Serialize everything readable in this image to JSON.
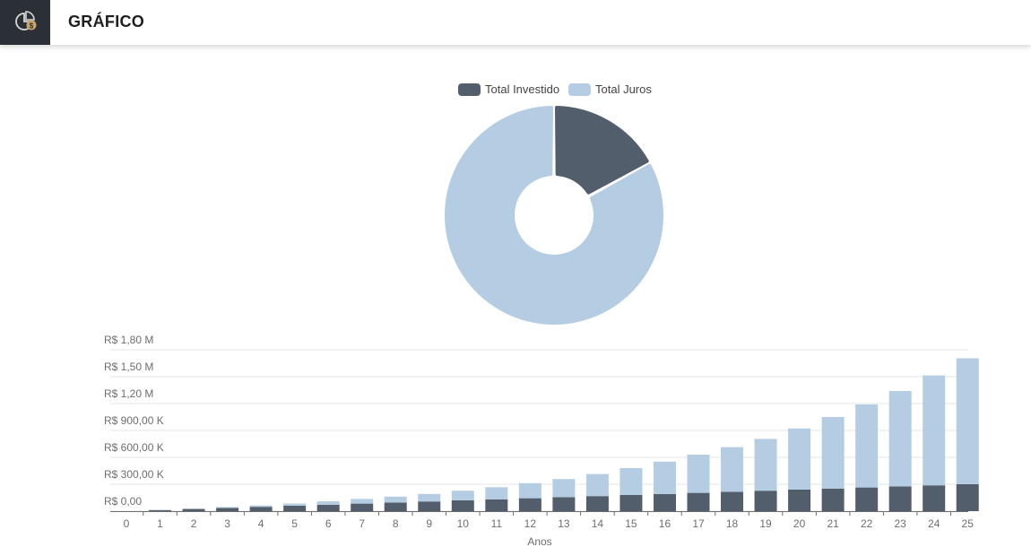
{
  "header": {
    "title": "GRÁFICO",
    "icon": "pie-chart-money-icon"
  },
  "colors": {
    "investido": "#525e6b",
    "juros": "#b5cde2",
    "header_icon_bg": "#2b3036",
    "icon_accent": "#c9a36b"
  },
  "chart_data": [
    {
      "type": "pie",
      "variant": "donut",
      "legend": [
        "Total Investido",
        "Total Juros"
      ],
      "legend_position": "top-center",
      "slices": [
        {
          "name": "Total Investido",
          "value": 17
        },
        {
          "name": "Total Juros",
          "value": 83
        }
      ]
    },
    {
      "type": "bar",
      "stacked": true,
      "xlabel": "Anos",
      "categories": [
        "0",
        "1",
        "2",
        "3",
        "4",
        "5",
        "6",
        "7",
        "8",
        "9",
        "10",
        "11",
        "12",
        "13",
        "14",
        "15",
        "16",
        "17",
        "18",
        "19",
        "20",
        "21",
        "22",
        "23",
        "24",
        "25"
      ],
      "y_ticks": [
        "R$ 0,00",
        "R$ 300,00 K",
        "R$ 600,00 K",
        "R$ 900,00 K",
        "R$ 1,20 M",
        "R$ 1,50 M",
        "R$ 1,80 M"
      ],
      "ylim": [
        0,
        1800000
      ],
      "grid": true,
      "series": [
        {
          "name": "Total Investido",
          "values": [
            0,
            12000,
            24000,
            36000,
            48000,
            60000,
            72000,
            84000,
            96000,
            108000,
            120000,
            132000,
            144000,
            156000,
            168000,
            180000,
            192000,
            204000,
            216000,
            228000,
            240000,
            252000,
            264000,
            276000,
            288000,
            300000
          ]
        },
        {
          "name": "Total Juros",
          "values": [
            0,
            1000,
            5000,
            10000,
            16000,
            25000,
            38000,
            52000,
            66000,
            84000,
            108000,
            135000,
            168000,
            202000,
            246000,
            300000,
            360000,
            426000,
            498000,
            578000,
            682000,
            798000,
            926000,
            1064000,
            1225000,
            1405000
          ]
        }
      ]
    }
  ]
}
